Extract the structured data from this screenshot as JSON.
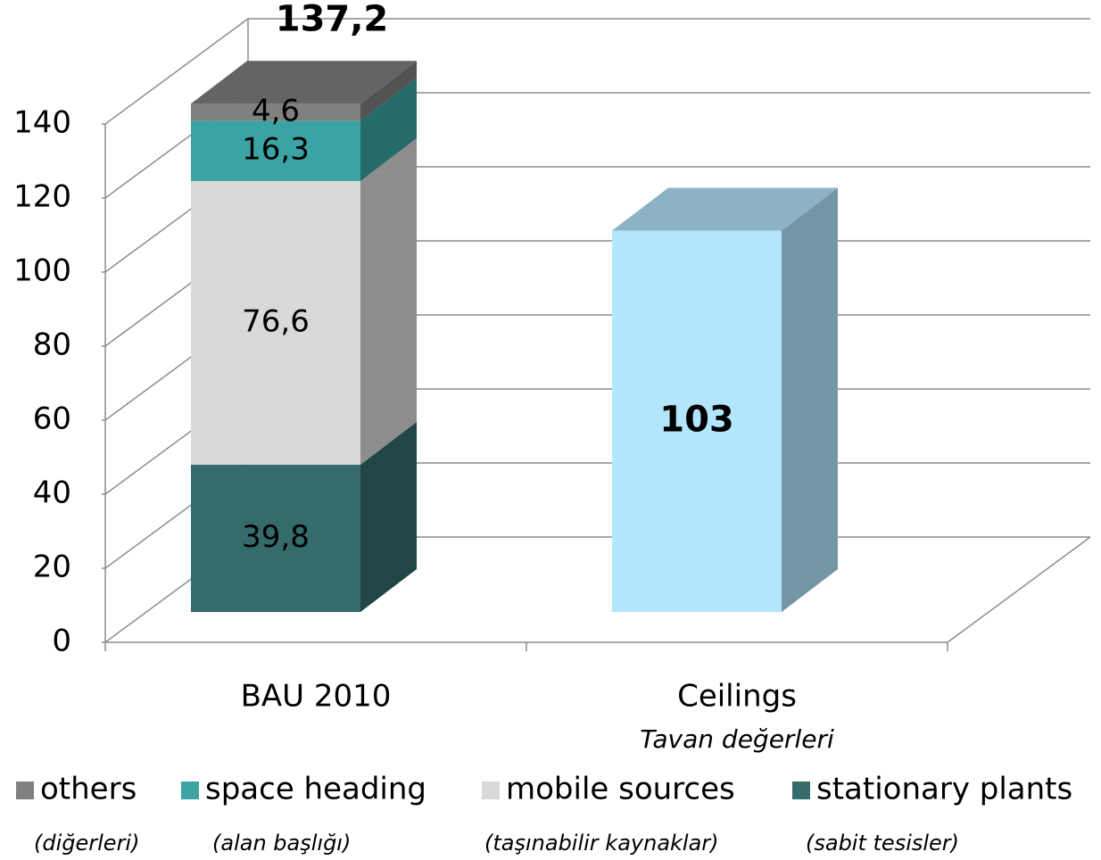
{
  "chart_data": {
    "type": "bar3d_stacked",
    "categories": [
      "BAU 2010",
      "Ceilings"
    ],
    "category_subtitles": [
      null,
      "Tavan değerleri"
    ],
    "ylim": [
      0,
      140
    ],
    "yticks": [
      0,
      20,
      40,
      60,
      80,
      100,
      120,
      140
    ],
    "series": [
      {
        "name": "stationary plants",
        "translation": "(sabit tesisler)",
        "color": "#346b6b",
        "values": [
          39.8,
          null
        ],
        "value_labels": [
          "39,8",
          null
        ]
      },
      {
        "name": "mobile sources",
        "translation": "(taşınabilir kaynaklar)",
        "color": "#d9d9d9",
        "values": [
          76.6,
          null
        ],
        "value_labels": [
          "76,6",
          null
        ]
      },
      {
        "name": "space heading",
        "translation": "(alan başlığı)",
        "color": "#3ba3a3",
        "values": [
          16.3,
          null
        ],
        "value_labels": [
          "16,3",
          null
        ]
      },
      {
        "name": "others",
        "translation": "(diğerleri)",
        "color": "#808080",
        "values": [
          4.6,
          null
        ],
        "value_labels": [
          "4,6",
          null
        ]
      }
    ],
    "single_bar": {
      "color": "#b3e5fc",
      "values": [
        null,
        103
      ]
    },
    "totals": {
      "values": [
        137.2,
        null
      ],
      "value_labels": [
        "137,2",
        null
      ]
    },
    "legend_order": [
      3,
      2,
      1,
      0
    ]
  }
}
